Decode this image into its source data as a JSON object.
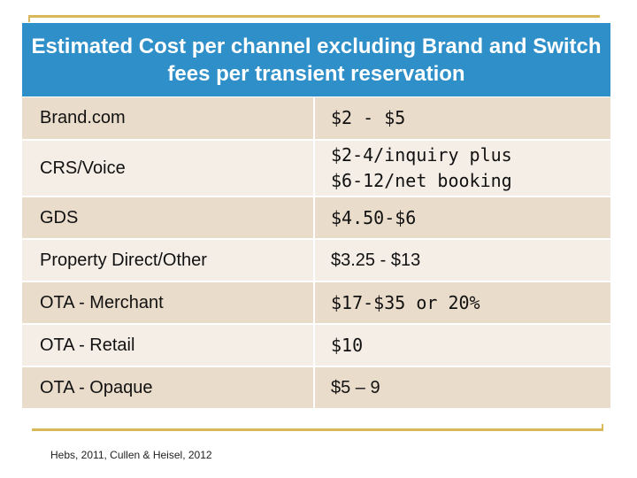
{
  "slide": {
    "title": "Estimated Cost per channel excluding Brand and Switch fees per transient reservation",
    "rows": [
      {
        "channel": "Brand.com",
        "cost": "$2 - $5"
      },
      {
        "channel": "CRS/Voice",
        "cost_line1": "$2-4/inquiry plus",
        "cost_line2": "$6-12/net booking"
      },
      {
        "channel": "GDS",
        "cost": "$4.50-$6"
      },
      {
        "channel": "Property Direct/Other",
        "cost": "$3.25 - $13"
      },
      {
        "channel": "OTA - Merchant",
        "cost": "$17-$35 or 20%"
      },
      {
        "channel": "OTA - Retail",
        "cost": "$10"
      },
      {
        "channel": "OTA - Opaque",
        "cost": "$5 – 9"
      }
    ],
    "citation": "Hebs, 2011, Cullen & Heisel, 2012"
  },
  "colors": {
    "title_bg": "#2f8fc9",
    "row_dark": "#eadccb",
    "row_light": "#f5eee7",
    "rule": "#d9b85a"
  }
}
